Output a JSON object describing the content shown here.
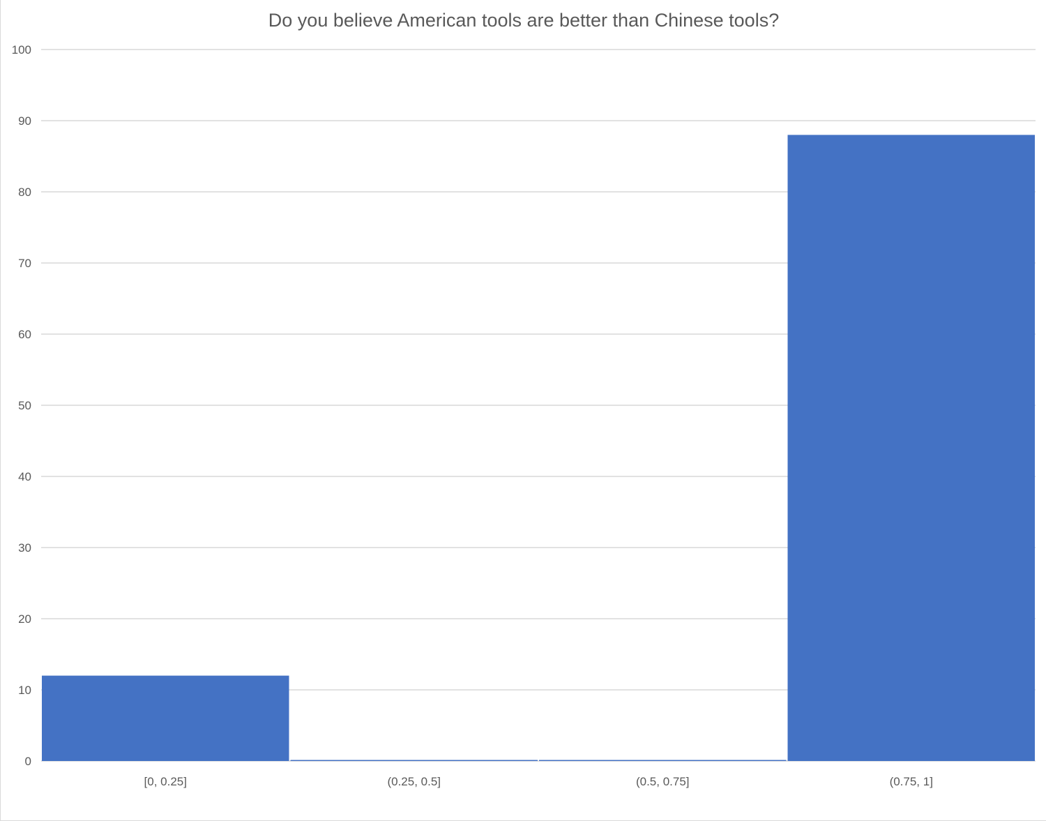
{
  "chart_data": {
    "type": "bar",
    "title": "Do you believe American tools are better than Chinese tools?",
    "xlabel": "",
    "ylabel": "",
    "categories": [
      "[0, 0.25]",
      "(0.25, 0.5]",
      "(0.5, 0.75]",
      "(0.75, 1]"
    ],
    "values": [
      12,
      0,
      0,
      88
    ],
    "ylim": [
      0,
      100
    ],
    "ytick_step": 10,
    "grid": true,
    "legend": "none",
    "bar_color": "#4472C4",
    "grid_color": "#d9d9d9"
  }
}
